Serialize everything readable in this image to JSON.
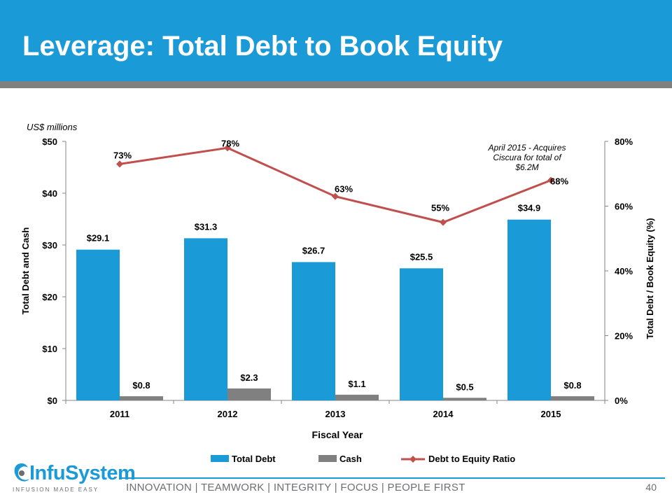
{
  "header": {
    "title": "Leverage: Total Debt to Book Equity"
  },
  "units_note": "US$ millions",
  "chart_data": {
    "type": "bar",
    "categories": [
      "2011",
      "2012",
      "2013",
      "2014",
      "2015"
    ],
    "series": [
      {
        "name": "Total Debt",
        "values": [
          29.1,
          31.3,
          26.7,
          25.5,
          34.9
        ],
        "labels": [
          "$29.1",
          "$31.3",
          "$26.7",
          "$25.5",
          "$34.9"
        ],
        "color": "#1a9ad6",
        "axis": "left"
      },
      {
        "name": "Cash",
        "values": [
          0.8,
          2.3,
          1.1,
          0.5,
          0.8
        ],
        "labels": [
          "$0.8",
          "$2.3",
          "$1.1",
          "$0.5",
          "$0.8"
        ],
        "color": "#808080",
        "axis": "left"
      },
      {
        "name": "Debt to Equity Ratio",
        "type": "line",
        "values": [
          73,
          78,
          63,
          55,
          68
        ],
        "labels": [
          "73%",
          "78%",
          "63%",
          "55%",
          "68%"
        ],
        "color": "#c0504d",
        "axis": "right"
      }
    ],
    "ylim": [
      0,
      50
    ],
    "y_ticks": [
      0,
      10,
      20,
      30,
      40,
      50
    ],
    "y_tick_labels": [
      "$0",
      "$10",
      "$20",
      "$30",
      "$40",
      "$50"
    ],
    "y2lim": [
      0,
      80
    ],
    "y2_ticks": [
      0,
      20,
      40,
      60,
      80
    ],
    "y2_tick_labels": [
      "0%",
      "20%",
      "40%",
      "60%",
      "80%"
    ],
    "xlabel": "Fiscal Year",
    "ylabel": "Total Debt and Cash",
    "y2label": "Total Debt / Book Equity (%)",
    "annotation": [
      "April 2015 - Acquires",
      "Ciscura for total of",
      "$6.2M"
    ],
    "legend": [
      "Total Debt",
      "Cash",
      "Debt to Equity Ratio"
    ],
    "legend_position": "bottom",
    "grid": false
  },
  "footer": {
    "tagline": "INNOVATION  |  TEAMWORK  |  INTEGRITY  |  FOCUS  |  PEOPLE FIRST",
    "page_number": "40"
  },
  "logo": {
    "name": "InfuSystem",
    "tagline": "INFUSION MADE EASY"
  }
}
